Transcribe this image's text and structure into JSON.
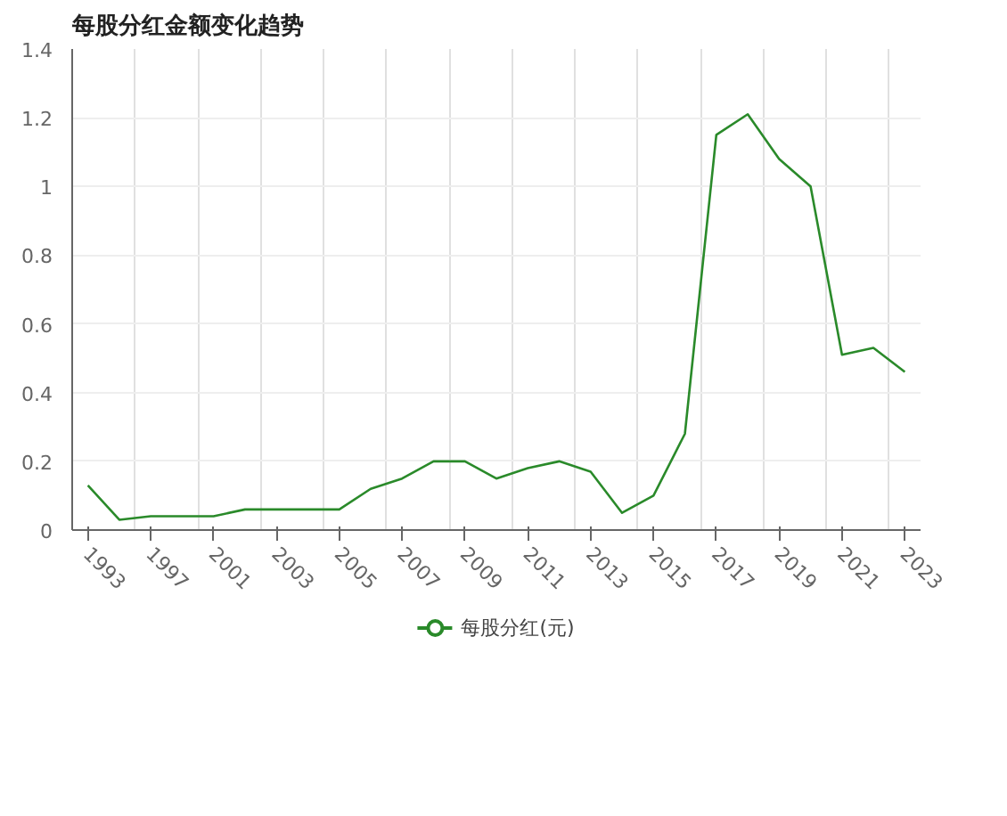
{
  "chart_data": {
    "type": "line",
    "title": "每股分红金额变化趋势",
    "categories": [
      "1993",
      null,
      "1997",
      null,
      "2001",
      null,
      "2003",
      null,
      "2005",
      null,
      "2007",
      null,
      "2009",
      null,
      "2011",
      null,
      "2013",
      null,
      "2015",
      null,
      "2017",
      null,
      "2019",
      null,
      "2021",
      null,
      "2023"
    ],
    "series": [
      {
        "name": "每股分红(元)",
        "color": "#2a8a2a",
        "values": [
          0.13,
          0.03,
          0.04,
          0.04,
          0.04,
          0.06,
          0.06,
          0.06,
          0.06,
          0.12,
          0.15,
          0.2,
          0.2,
          0.15,
          0.18,
          0.2,
          0.17,
          0.05,
          0.1,
          0.28,
          1.15,
          1.21,
          1.08,
          1.0,
          0.51,
          0.53,
          0.46
        ]
      }
    ],
    "ylim": [
      0,
      1.4
    ],
    "yticks": [
      0,
      0.2,
      0.4,
      0.6,
      0.8,
      1,
      1.2,
      1.4
    ],
    "grid": true,
    "legend": "bottom"
  }
}
